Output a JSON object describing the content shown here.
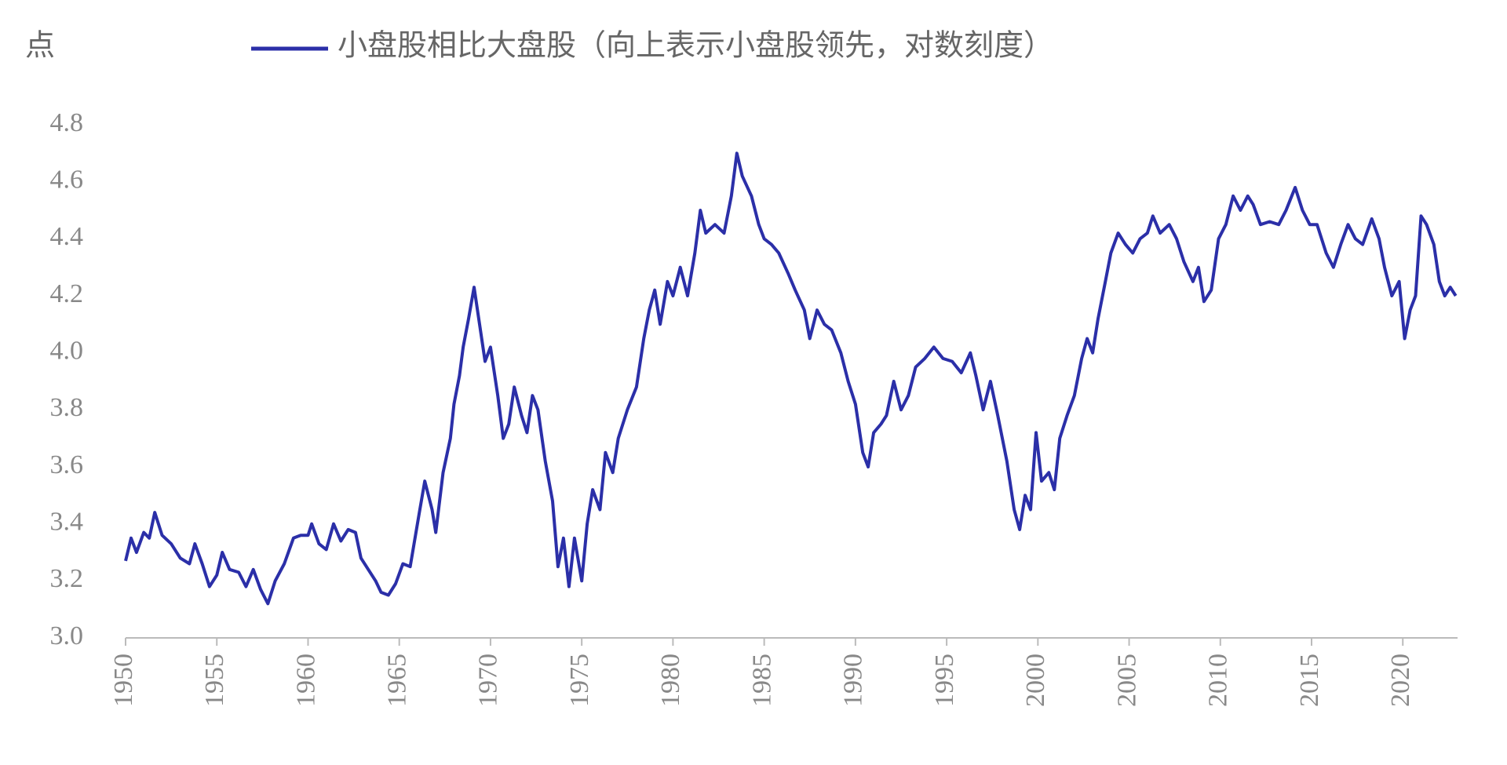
{
  "chart_data": {
    "type": "line",
    "unit_label": "点",
    "series": [
      {
        "name": "小盘股相比大盘股（向上表示小盘股领先，对数刻度）",
        "color": "#2b2fa8",
        "x": [
          1950,
          1950.3,
          1950.6,
          1951,
          1951.3,
          1951.6,
          1952,
          1952.5,
          1953,
          1953.5,
          1953.8,
          1954.2,
          1954.6,
          1955,
          1955.3,
          1955.7,
          1956.2,
          1956.6,
          1957,
          1957.4,
          1957.8,
          1958.2,
          1958.7,
          1959.2,
          1959.6,
          1960,
          1960.2,
          1960.6,
          1961,
          1961.4,
          1961.8,
          1962.2,
          1962.6,
          1962.9,
          1963.3,
          1963.7,
          1964,
          1964.4,
          1964.8,
          1965.2,
          1965.6,
          1966.1,
          1966.4,
          1966.8,
          1967,
          1967.4,
          1967.8,
          1968,
          1968.3,
          1968.5,
          1968.8,
          1969.1,
          1969.4,
          1969.7,
          1970,
          1970.4,
          1970.7,
          1971,
          1971.3,
          1971.7,
          1972,
          1972.3,
          1972.6,
          1973,
          1973.4,
          1973.7,
          1974,
          1974.3,
          1974.6,
          1975,
          1975.3,
          1975.6,
          1976,
          1976.3,
          1976.7,
          1977,
          1977.5,
          1978,
          1978.4,
          1978.7,
          1979,
          1979.3,
          1979.7,
          1980,
          1980.4,
          1980.8,
          1981.2,
          1981.5,
          1981.8,
          1982.3,
          1982.8,
          1983.2,
          1983.5,
          1983.8,
          1984.3,
          1984.7,
          1985,
          1985.4,
          1985.8,
          1986.3,
          1986.7,
          1987.2,
          1987.5,
          1987.9,
          1988.3,
          1988.7,
          1989.2,
          1989.6,
          1990,
          1990.4,
          1990.7,
          1991,
          1991.4,
          1991.7,
          1992.1,
          1992.5,
          1992.9,
          1993.3,
          1993.8,
          1994.3,
          1994.8,
          1995.3,
          1995.8,
          1996.3,
          1996.6,
          1997,
          1997.4,
          1997.8,
          1998.3,
          1998.7,
          1999,
          1999.3,
          1999.6,
          1999.9,
          2000.2,
          2000.6,
          2000.9,
          2001.2,
          2001.6,
          2002,
          2002.4,
          2002.7,
          2003,
          2003.3,
          2003.7,
          2004,
          2004.4,
          2004.8,
          2005.2,
          2005.6,
          2006,
          2006.3,
          2006.7,
          2007.2,
          2007.6,
          2008,
          2008.5,
          2008.8,
          2009.1,
          2009.5,
          2009.9,
          2010.3,
          2010.7,
          2011.1,
          2011.5,
          2011.8,
          2012.2,
          2012.7,
          2013.2,
          2013.6,
          2014.1,
          2014.5,
          2014.9,
          2015.3,
          2015.8,
          2016.2,
          2016.6,
          2017,
          2017.4,
          2017.8,
          2018.3,
          2018.7,
          2019,
          2019.4,
          2019.8,
          2020.1,
          2020.4,
          2020.7,
          2021,
          2021.3,
          2021.7,
          2022,
          2022.3,
          2022.6,
          2022.9
        ],
        "values": [
          3.27,
          3.35,
          3.3,
          3.37,
          3.35,
          3.44,
          3.36,
          3.33,
          3.28,
          3.26,
          3.33,
          3.26,
          3.18,
          3.22,
          3.3,
          3.24,
          3.23,
          3.18,
          3.24,
          3.17,
          3.12,
          3.2,
          3.26,
          3.35,
          3.36,
          3.36,
          3.4,
          3.33,
          3.31,
          3.4,
          3.34,
          3.38,
          3.37,
          3.28,
          3.24,
          3.2,
          3.16,
          3.15,
          3.19,
          3.26,
          3.25,
          3.44,
          3.55,
          3.45,
          3.37,
          3.58,
          3.7,
          3.82,
          3.92,
          4.02,
          4.12,
          4.23,
          4.1,
          3.97,
          4.02,
          3.85,
          3.7,
          3.75,
          3.88,
          3.78,
          3.72,
          3.85,
          3.8,
          3.62,
          3.48,
          3.25,
          3.35,
          3.18,
          3.35,
          3.2,
          3.4,
          3.52,
          3.45,
          3.65,
          3.58,
          3.7,
          3.8,
          3.88,
          4.05,
          4.15,
          4.22,
          4.1,
          4.25,
          4.2,
          4.3,
          4.2,
          4.35,
          4.5,
          4.42,
          4.45,
          4.42,
          4.55,
          4.7,
          4.62,
          4.55,
          4.45,
          4.4,
          4.38,
          4.35,
          4.28,
          4.22,
          4.15,
          4.05,
          4.15,
          4.1,
          4.08,
          4.0,
          3.9,
          3.82,
          3.65,
          3.6,
          3.72,
          3.75,
          3.78,
          3.9,
          3.8,
          3.85,
          3.95,
          3.98,
          4.02,
          3.98,
          3.97,
          3.93,
          4.0,
          3.92,
          3.8,
          3.9,
          3.78,
          3.62,
          3.45,
          3.38,
          3.5,
          3.45,
          3.72,
          3.55,
          3.58,
          3.52,
          3.7,
          3.78,
          3.85,
          3.98,
          4.05,
          4.0,
          4.12,
          4.25,
          4.35,
          4.42,
          4.38,
          4.35,
          4.4,
          4.42,
          4.48,
          4.42,
          4.45,
          4.4,
          4.32,
          4.25,
          4.3,
          4.18,
          4.22,
          4.4,
          4.45,
          4.55,
          4.5,
          4.55,
          4.52,
          4.45,
          4.46,
          4.45,
          4.5,
          4.58,
          4.5,
          4.45,
          4.45,
          4.35,
          4.3,
          4.38,
          4.45,
          4.4,
          4.38,
          4.47,
          4.4,
          4.3,
          4.2,
          4.25,
          4.05,
          4.15,
          4.2,
          4.48,
          4.45,
          4.38,
          4.25,
          4.2,
          4.23,
          4.2
        ]
      }
    ],
    "xlim": [
      1950,
      2023
    ],
    "xticks": [
      1950,
      1955,
      1960,
      1965,
      1970,
      1975,
      1980,
      1985,
      1990,
      1995,
      2000,
      2005,
      2010,
      2015,
      2020
    ],
    "ylim": [
      3.0,
      4.8
    ],
    "yticks": [
      {
        "value": 3.0,
        "label": "3.0"
      },
      3.2,
      3.4,
      3.6,
      3.8,
      {
        "value": 4.0,
        "label": "4.0"
      },
      4.2,
      4.4,
      4.6,
      4.8
    ],
    "grid": false
  }
}
